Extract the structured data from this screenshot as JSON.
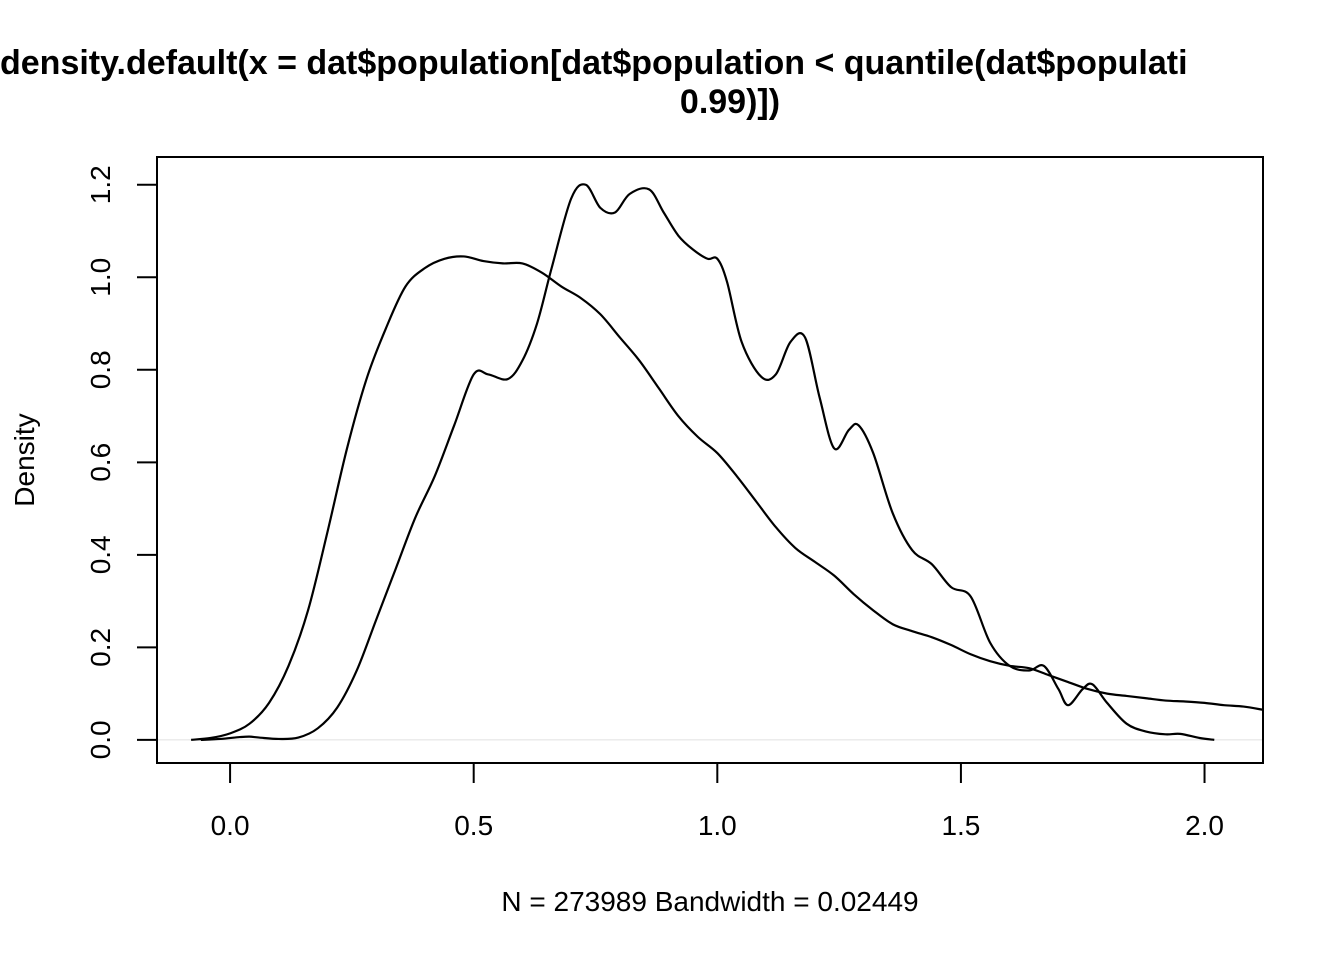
{
  "chart_data": {
    "type": "line",
    "title_line1": "density.default(x = dat$population[dat$population < quantile(dat$populati",
    "title_line2": "0.99)])",
    "xlabel": "N = 273989   Bandwidth = 0.02449",
    "ylabel": "Density",
    "xlim": [
      -0.15,
      2.12
    ],
    "ylim": [
      -0.05,
      1.26
    ],
    "x_ticks": [
      0.0,
      0.5,
      1.0,
      1.5,
      2.0
    ],
    "x_tick_labels": [
      "0.0",
      "0.5",
      "1.0",
      "1.5",
      "2.0"
    ],
    "y_ticks": [
      0.0,
      0.2,
      0.4,
      0.6,
      0.8,
      1.0,
      1.2
    ],
    "y_tick_labels": [
      "0.0",
      "0.2",
      "0.4",
      "0.6",
      "0.8",
      "1.0",
      "1.2"
    ],
    "grid": false,
    "line_color": "#000000",
    "series": [
      {
        "x": [
          -0.08,
          -0.04,
          0.0,
          0.04,
          0.08,
          0.12,
          0.16,
          0.2,
          0.24,
          0.28,
          0.32,
          0.36,
          0.4,
          0.44,
          0.48,
          0.52,
          0.56,
          0.6,
          0.64,
          0.68,
          0.72,
          0.76,
          0.8,
          0.84,
          0.88,
          0.92,
          0.96,
          1.0,
          1.04,
          1.08,
          1.12,
          1.16,
          1.2,
          1.24,
          1.28,
          1.32,
          1.36,
          1.4,
          1.44,
          1.48,
          1.52,
          1.56,
          1.6,
          1.64,
          1.68,
          1.72,
          1.76,
          1.8,
          1.84,
          1.88,
          1.92,
          1.96,
          2.0,
          2.04,
          2.08,
          2.12
        ],
        "values": [
          0.0,
          0.004,
          0.014,
          0.035,
          0.08,
          0.16,
          0.28,
          0.45,
          0.63,
          0.78,
          0.89,
          0.98,
          1.02,
          1.04,
          1.045,
          1.035,
          1.03,
          1.03,
          1.01,
          0.98,
          0.955,
          0.92,
          0.87,
          0.82,
          0.76,
          0.7,
          0.655,
          0.62,
          0.57,
          0.515,
          0.46,
          0.415,
          0.385,
          0.355,
          0.315,
          0.28,
          0.25,
          0.235,
          0.222,
          0.205,
          0.185,
          0.17,
          0.16,
          0.155,
          0.14,
          0.125,
          0.11,
          0.1,
          0.095,
          0.09,
          0.085,
          0.083,
          0.08,
          0.075,
          0.072,
          0.065
        ]
      },
      {
        "x": [
          -0.06,
          -0.02,
          0.02,
          0.04,
          0.06,
          0.1,
          0.14,
          0.18,
          0.22,
          0.26,
          0.3,
          0.34,
          0.38,
          0.42,
          0.46,
          0.5,
          0.53,
          0.57,
          0.6,
          0.63,
          0.66,
          0.7,
          0.73,
          0.76,
          0.79,
          0.82,
          0.86,
          0.89,
          0.92,
          0.95,
          0.98,
          1.0,
          1.02,
          1.05,
          1.09,
          1.12,
          1.15,
          1.18,
          1.21,
          1.24,
          1.27,
          1.29,
          1.32,
          1.36,
          1.4,
          1.44,
          1.48,
          1.52,
          1.56,
          1.6,
          1.64,
          1.67,
          1.7,
          1.72,
          1.75,
          1.77,
          1.8,
          1.84,
          1.88,
          1.92,
          1.95,
          1.99,
          2.02
        ],
        "values": [
          0.0,
          0.002,
          0.006,
          0.007,
          0.005,
          0.002,
          0.005,
          0.025,
          0.07,
          0.15,
          0.26,
          0.37,
          0.48,
          0.57,
          0.68,
          0.79,
          0.79,
          0.78,
          0.82,
          0.9,
          1.02,
          1.17,
          1.2,
          1.15,
          1.14,
          1.18,
          1.19,
          1.14,
          1.09,
          1.06,
          1.04,
          1.04,
          0.99,
          0.86,
          0.785,
          0.79,
          0.86,
          0.87,
          0.74,
          0.63,
          0.67,
          0.68,
          0.62,
          0.49,
          0.41,
          0.38,
          0.33,
          0.31,
          0.21,
          0.16,
          0.15,
          0.16,
          0.11,
          0.075,
          0.11,
          0.12,
          0.08,
          0.035,
          0.018,
          0.012,
          0.013,
          0.004,
          0.0
        ]
      }
    ]
  }
}
